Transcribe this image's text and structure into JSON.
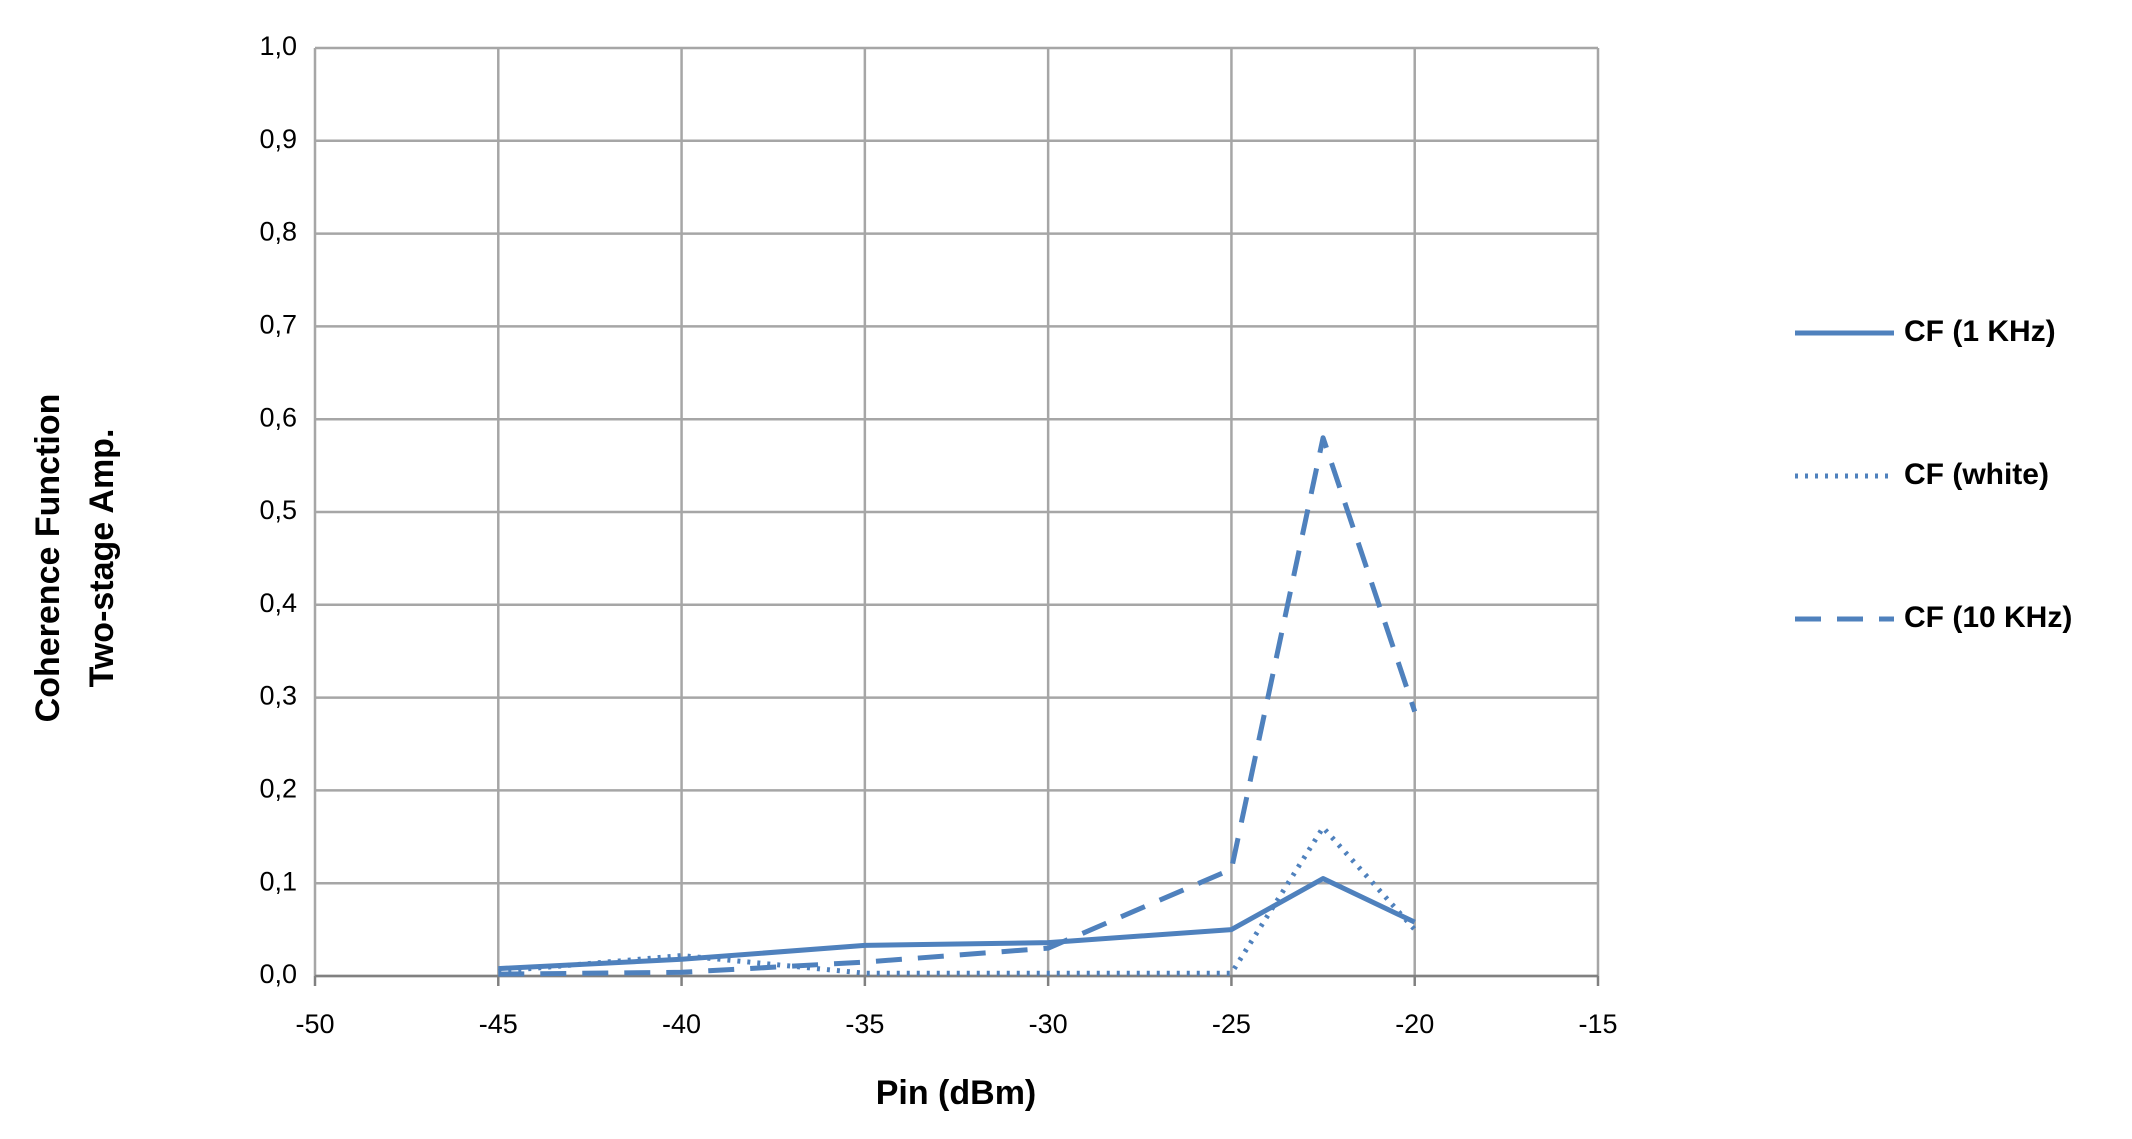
{
  "chart_data": {
    "type": "line",
    "xlabel": "Pin (dBm)",
    "ylabel": [
      "Coherence Function",
      "Two-stage Amp."
    ],
    "x": [
      -45,
      -40,
      -35,
      -30,
      -25,
      -22.5,
      -20
    ],
    "series": [
      {
        "name": "CF (1 KHz)",
        "color": "#4f81bd",
        "dash": "solid",
        "values": [
          0.008,
          0.018,
          0.033,
          0.036,
          0.05,
          0.105,
          0.058
        ]
      },
      {
        "name": "CF (white)",
        "color": "#4f81bd",
        "dash": "dotted",
        "values": [
          0.005,
          0.022,
          0.003,
          0.003,
          0.003,
          0.16,
          0.05
        ]
      },
      {
        "name": "CF (10 KHz)",
        "color": "#4f81bd",
        "dash": "dashed",
        "values": [
          0.002,
          0.004,
          0.015,
          0.03,
          0.115,
          0.58,
          0.285
        ]
      }
    ],
    "xlim": [
      -50,
      -15
    ],
    "xticks": [
      -50,
      -45,
      -40,
      -35,
      -30,
      -25,
      -20,
      -15
    ],
    "ylim": [
      0,
      1
    ],
    "yticks": [
      {
        "value": 0,
        "label": "0,0"
      },
      {
        "value": 0.1,
        "label": "0,1"
      },
      {
        "value": 0.2,
        "label": "0,2"
      },
      {
        "value": 0.3,
        "label": "0,3"
      },
      {
        "value": 0.4,
        "label": "0,4"
      },
      {
        "value": 0.5,
        "label": "0,5"
      },
      {
        "value": 0.6,
        "label": "0,6"
      },
      {
        "value": 0.7,
        "label": "0,7"
      },
      {
        "value": 0.8,
        "label": "0,8"
      },
      {
        "value": 0.9,
        "label": "0,9"
      },
      {
        "value": 1,
        "label": "1,0"
      }
    ],
    "grid": true,
    "legend": "right"
  }
}
